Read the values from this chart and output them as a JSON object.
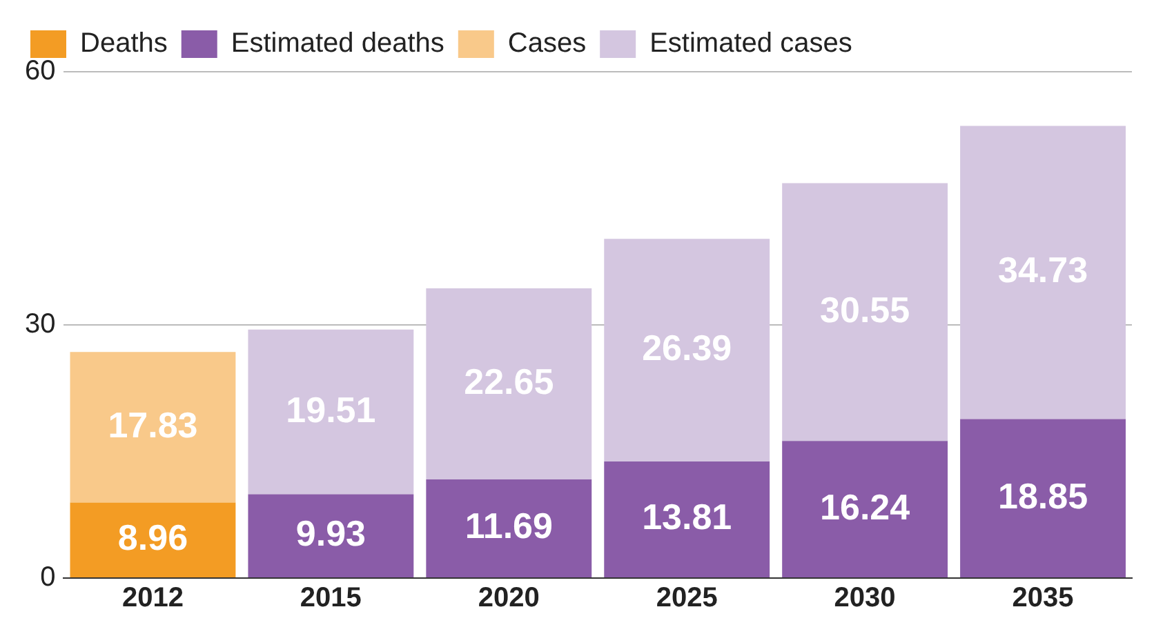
{
  "chart_data": {
    "type": "bar",
    "stacked": true,
    "categories": [
      "2012",
      "2015",
      "2020",
      "2025",
      "2030",
      "2035"
    ],
    "series": [
      {
        "name": "Deaths",
        "color": "#f39c24",
        "values": [
          8.96,
          null,
          null,
          null,
          null,
          null
        ]
      },
      {
        "name": "Estimated deaths",
        "color": "#8a5ca8",
        "values": [
          null,
          9.93,
          11.69,
          13.81,
          16.24,
          18.85
        ]
      },
      {
        "name": "Cases",
        "color": "#f9c98a",
        "values": [
          17.83,
          null,
          null,
          null,
          null,
          null
        ]
      },
      {
        "name": "Estimated cases",
        "color": "#d4c6e0",
        "values": [
          null,
          19.51,
          22.65,
          26.39,
          30.55,
          34.73
        ]
      }
    ],
    "ylim": [
      0,
      60
    ],
    "yticks": [
      0,
      30,
      60
    ],
    "grid": "y",
    "legend": "top left",
    "data_labels": true
  }
}
